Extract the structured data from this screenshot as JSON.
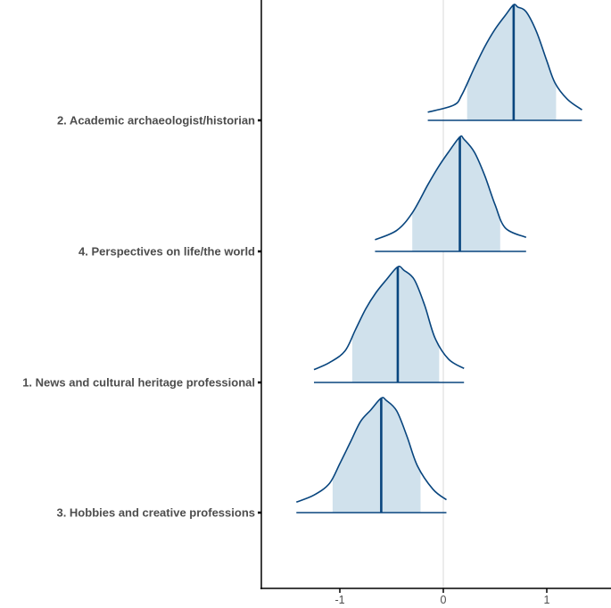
{
  "chart_data": {
    "type": "ridgeline",
    "title": "",
    "xlabel": "",
    "ylabel": "",
    "xlim": [
      -1.72,
      1.6
    ],
    "x_ticks": [
      -1,
      0,
      1
    ],
    "x_tick_labels": [
      "-1",
      "0",
      "1"
    ],
    "zero_line": true,
    "grid": false,
    "categories": [
      "2. Academic archaeologist/historian",
      "4. Perspectives on life/the world",
      "1. News and cultural heritage professional",
      "3. Hobbies and creative professions"
    ],
    "series": [
      {
        "name": "2. Academic archaeologist/historian",
        "median": 0.68,
        "interval": [
          0.23,
          1.09
        ],
        "range": [
          -0.15,
          1.34
        ],
        "density": [
          [
            -0.15,
            0.07
          ],
          [
            0.1,
            0.13
          ],
          [
            0.18,
            0.22
          ],
          [
            0.3,
            0.45
          ],
          [
            0.4,
            0.63
          ],
          [
            0.5,
            0.78
          ],
          [
            0.6,
            0.9
          ],
          [
            0.68,
            0.99
          ],
          [
            0.72,
            0.97
          ],
          [
            0.8,
            0.93
          ],
          [
            0.9,
            0.76
          ],
          [
            1.0,
            0.51
          ],
          [
            1.08,
            0.32
          ],
          [
            1.2,
            0.18
          ],
          [
            1.34,
            0.09
          ]
        ]
      },
      {
        "name": "4. Perspectives on life/the world",
        "median": 0.16,
        "interval": [
          -0.3,
          0.55
        ],
        "range": [
          -0.66,
          0.8
        ],
        "density": [
          [
            -0.66,
            0.1
          ],
          [
            -0.45,
            0.18
          ],
          [
            -0.3,
            0.33
          ],
          [
            -0.15,
            0.57
          ],
          [
            -0.05,
            0.72
          ],
          [
            0.05,
            0.85
          ],
          [
            0.16,
            0.98
          ],
          [
            0.2,
            0.96
          ],
          [
            0.3,
            0.85
          ],
          [
            0.4,
            0.65
          ],
          [
            0.5,
            0.4
          ],
          [
            0.6,
            0.2
          ],
          [
            0.8,
            0.12
          ]
        ]
      },
      {
        "name": "1. News and cultural heritage professional",
        "median": -0.44,
        "interval": [
          -0.88,
          -0.04
        ],
        "range": [
          -1.25,
          0.2
        ],
        "density": [
          [
            -1.25,
            0.11
          ],
          [
            -1.1,
            0.17
          ],
          [
            -0.95,
            0.27
          ],
          [
            -0.85,
            0.45
          ],
          [
            -0.75,
            0.63
          ],
          [
            -0.65,
            0.77
          ],
          [
            -0.55,
            0.88
          ],
          [
            -0.44,
            0.99
          ],
          [
            -0.38,
            0.96
          ],
          [
            -0.28,
            0.88
          ],
          [
            -0.18,
            0.66
          ],
          [
            -0.08,
            0.38
          ],
          [
            0.05,
            0.2
          ],
          [
            0.2,
            0.12
          ]
        ]
      },
      {
        "name": "3. Hobbies and creative professions",
        "median": -0.6,
        "interval": [
          -1.07,
          -0.22
        ],
        "range": [
          -1.42,
          0.03
        ],
        "density": [
          [
            -1.42,
            0.09
          ],
          [
            -1.25,
            0.15
          ],
          [
            -1.1,
            0.25
          ],
          [
            -1.0,
            0.42
          ],
          [
            -0.9,
            0.6
          ],
          [
            -0.8,
            0.78
          ],
          [
            -0.7,
            0.88
          ],
          [
            -0.6,
            0.98
          ],
          [
            -0.55,
            0.96
          ],
          [
            -0.45,
            0.87
          ],
          [
            -0.35,
            0.65
          ],
          [
            -0.25,
            0.4
          ],
          [
            -0.1,
            0.2
          ],
          [
            0.03,
            0.11
          ]
        ]
      }
    ],
    "colors": {
      "fill": "#d0e1ec",
      "line": "#08457e",
      "axis": "#000000",
      "zero_line": "#d9d9d9",
      "text": "#4d4d4d"
    }
  }
}
